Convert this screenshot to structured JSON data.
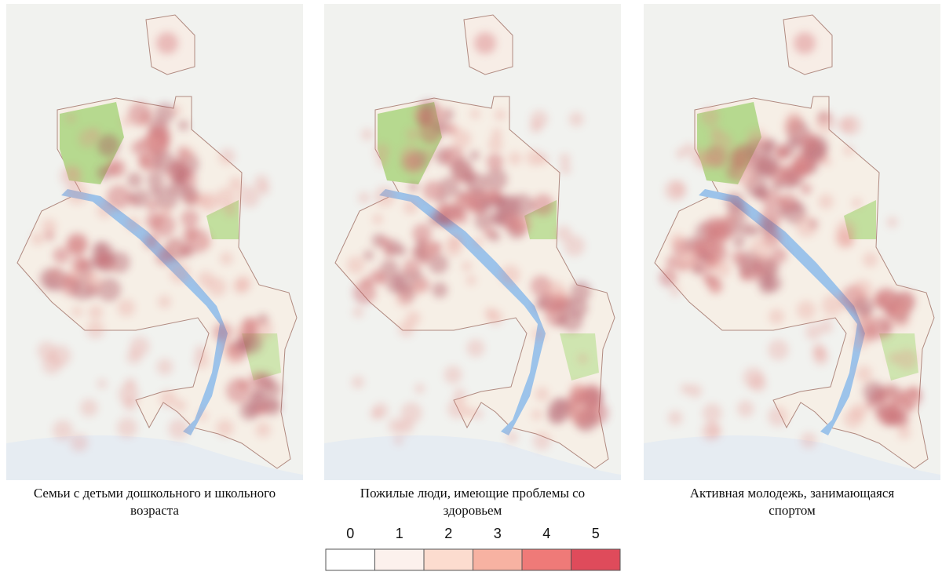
{
  "panels": [
    {
      "caption_lines": [
        "Семьи с детьми дошкольного и школьного",
        "возраста"
      ]
    },
    {
      "caption_lines": [
        "Пожилые люди, имеющие проблемы со",
        "здоровьем"
      ]
    },
    {
      "caption_lines": [
        "Активная молодежь, занимающаяся",
        "спортом"
      ]
    }
  ],
  "legend": {
    "values": [
      0,
      1,
      2,
      3,
      4,
      5
    ],
    "colors": [
      "#ffffff",
      "#fcf1ed",
      "#fcdccf",
      "#f7b2a2",
      "#ef7a78",
      "#df4b5b"
    ]
  }
}
